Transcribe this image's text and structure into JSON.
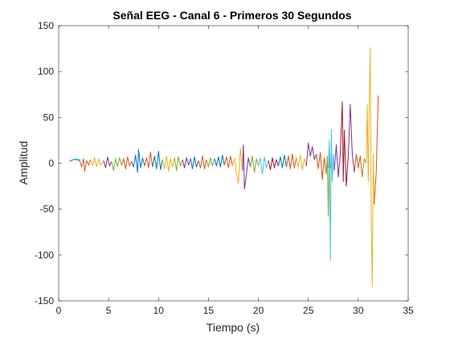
{
  "chart_data": {
    "type": "line",
    "title": "Señal EEG - Canal 6 - Primeros 30 Segundos",
    "xlabel": "Tiempo (s)",
    "ylabel": "Amplitud",
    "xlim": [
      0,
      35
    ],
    "ylim": [
      -150,
      150
    ],
    "xticks": [
      0,
      5,
      10,
      15,
      20,
      25,
      30,
      35
    ],
    "yticks": [
      -150,
      -100,
      -50,
      0,
      50,
      100,
      150
    ],
    "grid": false,
    "box": true,
    "color_cycle": [
      "#0072BD",
      "#D95319",
      "#EDB120",
      "#7E2F8E",
      "#77AC30",
      "#4DBEEE",
      "#A2142F"
    ],
    "series": [
      {
        "color": "#0072BD",
        "x": [
          1.1,
          1.3,
          1.5,
          1.8,
          2.1
        ],
        "y": [
          2,
          3,
          4,
          4,
          3
        ]
      },
      {
        "color": "#4DBEEE",
        "x": [
          1.3,
          1.5,
          1.7,
          2.0,
          2.2
        ],
        "y": [
          4,
          4,
          5,
          4,
          4
        ]
      },
      {
        "color": "#D95319",
        "x": [
          2.1,
          2.3,
          2.5,
          2.6,
          2.8,
          3.0,
          3.2
        ],
        "y": [
          3,
          -4,
          5,
          -9,
          3,
          -2,
          4
        ]
      },
      {
        "color": "#EDB120",
        "x": [
          3.2,
          3.4,
          3.6,
          3.8,
          4.0,
          4.2,
          4.5
        ],
        "y": [
          4,
          -3,
          6,
          -4,
          5,
          -2,
          3
        ]
      },
      {
        "color": "#7E2F8E",
        "x": [
          4.5,
          4.7,
          4.9,
          5.1,
          5.3
        ],
        "y": [
          3,
          -5,
          7,
          -3,
          2
        ]
      },
      {
        "color": "#77AC30",
        "x": [
          5.3,
          5.5,
          5.7,
          5.9,
          6.1,
          6.3
        ],
        "y": [
          2,
          -8,
          5,
          -4,
          6,
          -2
        ]
      },
      {
        "color": "#D95319",
        "x": [
          6.3,
          6.5,
          6.7,
          6.9,
          7.1,
          7.3
        ],
        "y": [
          -2,
          5,
          -6,
          7,
          -3,
          2
        ]
      },
      {
        "color": "#0072BD",
        "x": [
          7.3,
          7.5,
          7.7,
          7.9,
          8.0,
          8.2,
          8.4,
          8.6
        ],
        "y": [
          2,
          -4,
          9,
          -10,
          15,
          -5,
          6,
          -3
        ]
      },
      {
        "color": "#D95319",
        "x": [
          8.6,
          8.8,
          9.0,
          9.2,
          9.4
        ],
        "y": [
          -3,
          6,
          -5,
          12,
          -4
        ]
      },
      {
        "color": "#0072BD",
        "x": [
          9.4,
          9.6,
          9.8,
          10.0,
          10.2,
          10.4
        ],
        "y": [
          -4,
          8,
          -6,
          13,
          -7,
          4
        ]
      },
      {
        "color": "#EDB120",
        "x": [
          10.4,
          10.6,
          10.8,
          11.0,
          11.2,
          11.4,
          11.6
        ],
        "y": [
          4,
          -6,
          8,
          -9,
          5,
          -4,
          6
        ]
      },
      {
        "color": "#77AC30",
        "x": [
          11.6,
          11.8,
          12.0,
          12.2,
          12.4
        ],
        "y": [
          6,
          -8,
          7,
          -3,
          4
        ]
      },
      {
        "color": "#7E2F8E",
        "x": [
          12.4,
          12.6,
          12.8,
          13.0
        ],
        "y": [
          4,
          -5,
          6,
          -2
        ]
      },
      {
        "color": "#0072BD",
        "x": [
          13.0,
          13.2,
          13.4,
          13.6,
          13.8,
          14.0
        ],
        "y": [
          -2,
          5,
          -6,
          7,
          -4,
          3
        ]
      },
      {
        "color": "#D95319",
        "x": [
          14.0,
          14.2,
          14.4,
          14.6,
          14.8
        ],
        "y": [
          3,
          -5,
          8,
          -6,
          4
        ]
      },
      {
        "color": "#77AC30",
        "x": [
          14.8,
          15.0,
          15.2,
          15.4,
          15.6
        ],
        "y": [
          4,
          -4,
          6,
          -3,
          5
        ]
      },
      {
        "color": "#0072BD",
        "x": [
          15.6,
          15.8,
          16.0,
          16.2,
          16.4,
          16.6
        ],
        "y": [
          5,
          -3,
          7,
          -4,
          9,
          -2
        ]
      },
      {
        "color": "#D95319",
        "x": [
          16.6,
          16.8,
          17.0,
          17.2,
          17.4
        ],
        "y": [
          -2,
          7,
          -5,
          8,
          -3
        ]
      },
      {
        "color": "#EDB120",
        "x": [
          17.4,
          17.6,
          17.8,
          18.0,
          18.2,
          18.4
        ],
        "y": [
          -3,
          5,
          -10,
          -22,
          16,
          -8
        ]
      },
      {
        "color": "#7E2F8E",
        "x": [
          18.4,
          18.5,
          18.6,
          18.8,
          19.0,
          19.2
        ],
        "y": [
          -8,
          20,
          -28,
          -12,
          6,
          -4
        ]
      },
      {
        "color": "#77AC30",
        "x": [
          19.2,
          19.4,
          19.6,
          19.8,
          20.0
        ],
        "y": [
          -4,
          8,
          -10,
          5,
          -3
        ]
      },
      {
        "color": "#4DBEEE",
        "x": [
          20.0,
          20.2,
          20.4,
          20.6,
          20.8,
          21.0
        ],
        "y": [
          -3,
          6,
          -12,
          7,
          -5,
          3
        ]
      },
      {
        "color": "#A2142F",
        "x": [
          21.0,
          21.2,
          21.4,
          21.6,
          21.8,
          22.0
        ],
        "y": [
          3,
          -7,
          6,
          -5,
          4,
          -3
        ]
      },
      {
        "color": "#0072BD",
        "x": [
          22.0,
          22.2,
          22.4,
          22.6,
          22.8
        ],
        "y": [
          -3,
          7,
          -5,
          9,
          -4
        ]
      },
      {
        "color": "#D95319",
        "x": [
          22.8,
          23.0,
          23.2,
          23.4,
          23.6,
          23.8
        ],
        "y": [
          -4,
          8,
          -6,
          10,
          -5,
          6
        ]
      },
      {
        "color": "#EDB120",
        "x": [
          23.8,
          24.0,
          24.2,
          24.4,
          24.6,
          24.8
        ],
        "y": [
          6,
          -4,
          9,
          -7,
          5,
          -3
        ]
      },
      {
        "color": "#7E2F8E",
        "x": [
          24.8,
          25.0,
          25.2,
          25.4,
          25.6,
          25.8
        ],
        "y": [
          -3,
          22,
          8,
          18,
          4,
          10
        ]
      },
      {
        "color": "#D95319",
        "x": [
          25.8,
          26.0,
          26.2,
          26.4,
          26.6,
          26.8
        ],
        "y": [
          10,
          -6,
          12,
          -18,
          6,
          -12
        ]
      },
      {
        "color": "#77AC30",
        "x": [
          26.8,
          26.9,
          27.0,
          27.1,
          27.2
        ],
        "y": [
          -12,
          8,
          -58,
          18,
          -5
        ]
      },
      {
        "color": "#4DBEEE",
        "x": [
          27.0,
          27.1,
          27.2,
          27.3,
          27.4,
          27.5,
          27.6
        ],
        "y": [
          -5,
          25,
          -106,
          37,
          -20,
          10,
          -8
        ]
      },
      {
        "color": "#7E2F8E",
        "x": [
          27.6,
          27.8,
          28.0,
          28.2
        ],
        "y": [
          -8,
          20,
          -15,
          10
        ]
      },
      {
        "color": "#A2142F",
        "x": [
          28.2,
          28.4,
          28.5,
          28.6,
          28.8,
          29.0
        ],
        "y": [
          10,
          67,
          -20,
          36,
          -25,
          8
        ]
      },
      {
        "color": "#7E2F8E",
        "x": [
          29.0,
          29.2,
          29.4,
          29.6
        ],
        "y": [
          8,
          64,
          10,
          -10
        ]
      },
      {
        "color": "#D95319",
        "x": [
          29.6,
          29.8,
          30.0,
          30.2,
          30.4
        ],
        "y": [
          -10,
          10,
          -5,
          8,
          -15
        ]
      },
      {
        "color": "#77AC30",
        "x": [
          30.4,
          30.6,
          30.8
        ],
        "y": [
          -15,
          5,
          0
        ]
      },
      {
        "color": "#EDB120",
        "x": [
          30.8,
          30.9,
          31.0,
          31.1,
          31.2,
          31.3,
          31.4,
          31.5,
          31.6
        ],
        "y": [
          0,
          64,
          -20,
          66,
          126,
          -60,
          -135,
          10,
          -45
        ]
      },
      {
        "color": "#D95319",
        "x": [
          31.6,
          31.8,
          32.0
        ],
        "y": [
          -45,
          -10,
          74
        ]
      }
    ]
  }
}
